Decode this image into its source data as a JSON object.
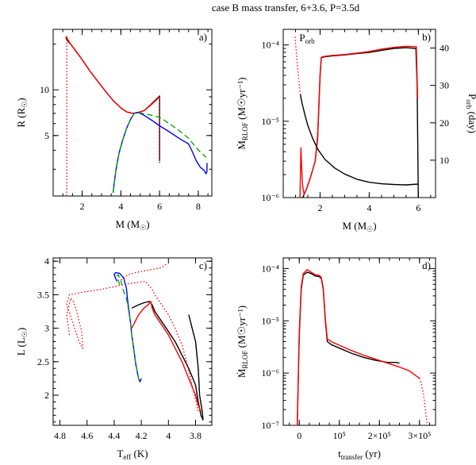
{
  "figure_title": "case B mass transfer,  6+3.6, P=3.5d",
  "chart_data": [
    {
      "panel": "a)",
      "type": "line",
      "xlabel": "M (M",
      "xlabel_sub": "☉",
      "xlabel_end": ")",
      "ylabel": "R (R",
      "ylabel_sub": "☉",
      "ylabel_end": ")",
      "xlim": [
        0.5,
        8.7
      ],
      "ylim_log": [
        2.0,
        25.0
      ],
      "xticks": [
        {
          "v": 2,
          "label": "2"
        },
        {
          "v": 4,
          "label": "4"
        },
        {
          "v": 6,
          "label": "6"
        },
        {
          "v": 8,
          "label": "8"
        }
      ],
      "yticks": [
        {
          "v": 5,
          "label": "5"
        },
        {
          "v": 10,
          "label": "10"
        }
      ],
      "series": [
        {
          "name": "donor (black)",
          "color": "#000000",
          "style": "solid",
          "x": [
            6.0,
            6.0,
            5.8,
            5.5,
            5.2,
            4.9,
            4.6,
            4.3,
            4.0,
            3.6,
            3.2,
            2.8,
            2.4,
            2.0,
            1.7,
            1.4,
            1.25,
            1.15
          ],
          "y": [
            3.4,
            9.1,
            8.6,
            7.9,
            7.3,
            7.1,
            7.0,
            7.15,
            7.6,
            8.5,
            9.8,
            11.4,
            13.3,
            15.8,
            17.8,
            20.0,
            21.0,
            22.0
          ]
        },
        {
          "name": "donor (red)",
          "color": "#ff0000",
          "style": "solid",
          "x": [
            6.0,
            5.8,
            5.5,
            5.2,
            4.9,
            4.6,
            4.3,
            4.0,
            3.6,
            3.2,
            2.8,
            2.4,
            2.0,
            1.7,
            1.4,
            1.25,
            1.15
          ],
          "y": [
            9.0,
            8.5,
            7.85,
            7.3,
            7.1,
            7.0,
            7.15,
            7.6,
            8.5,
            9.8,
            11.4,
            13.3,
            15.8,
            17.8,
            20.0,
            21.5,
            22.5
          ]
        },
        {
          "name": "donor drop (red dotted)",
          "color": "#ff0000",
          "style": "dotted",
          "x": [
            1.2,
            1.2
          ],
          "y": [
            2.0,
            22.5
          ]
        },
        {
          "name": "donor drop 6 (red dotted)",
          "color": "#ff0000",
          "style": "dotted",
          "x": [
            6.0,
            6.0
          ],
          "y": [
            3.3,
            9.1
          ]
        },
        {
          "name": "accretor (blue)",
          "color": "#0000ff",
          "style": "solid",
          "x": [
            3.6,
            3.65,
            3.75,
            3.9,
            4.1,
            4.3,
            4.5,
            4.7,
            4.9,
            5.2,
            5.6,
            6.0,
            6.5,
            7.0,
            7.5,
            7.7,
            7.9,
            8.1,
            8.3,
            8.4,
            8.45,
            8.45
          ],
          "y": [
            2.1,
            2.4,
            3.0,
            3.8,
            4.7,
            5.6,
            6.4,
            7.0,
            7.1,
            6.8,
            6.3,
            5.8,
            5.3,
            4.8,
            4.4,
            3.9,
            3.4,
            3.1,
            2.95,
            2.8,
            2.9,
            3.3
          ]
        },
        {
          "name": "accretor (green dashed)",
          "color": "#00a000",
          "style": "dashed",
          "x": [
            3.6,
            3.65,
            3.75,
            3.9,
            4.1,
            4.3,
            4.5,
            4.7,
            4.9,
            5.2,
            5.6,
            6.0,
            6.5,
            7.0,
            7.5,
            7.8,
            8.1,
            8.4
          ],
          "y": [
            2.1,
            2.4,
            3.0,
            3.8,
            4.7,
            5.6,
            6.4,
            7.0,
            7.1,
            6.95,
            6.8,
            6.6,
            6.0,
            5.4,
            4.8,
            4.3,
            3.9,
            3.6
          ]
        }
      ]
    },
    {
      "panel": "b)",
      "type": "line",
      "xlabel": "M (M",
      "xlabel_sub": "☉",
      "xlabel_end": ")",
      "ylabel": "Ṁ",
      "ylabel_sub": "RLOF",
      "ylabel_end": "  (M☉yr⁻¹)",
      "y2label": "P",
      "y2label_sub": "orb",
      "y2label_end": " (day)",
      "annotation": "P",
      "annotation_sub": "orb",
      "xlim": [
        0.5,
        6.7
      ],
      "ylim_log": [
        1e-06,
        0.00016
      ],
      "y2lim": [
        0,
        45
      ],
      "xticks": [
        {
          "v": 2,
          "label": "2"
        },
        {
          "v": 4,
          "label": "4"
        },
        {
          "v": 6,
          "label": "6"
        }
      ],
      "yticks": [
        {
          "v": 1e-06,
          "label": "10⁻⁶"
        },
        {
          "v": 1e-05,
          "label": "10⁻⁵"
        },
        {
          "v": 0.0001,
          "label": "10⁻⁴"
        }
      ],
      "y2ticks": [
        {
          "v": 10,
          "label": "10"
        },
        {
          "v": 20,
          "label": "20"
        },
        {
          "v": 30,
          "label": "30"
        },
        {
          "v": 40,
          "label": "40"
        }
      ],
      "series": [
        {
          "name": "Mdot (black)",
          "color": "#000000",
          "style": "solid",
          "axis": "y",
          "x": [
            6.0,
            5.95,
            5.9,
            5.5,
            5.0,
            4.5,
            4.0,
            3.5,
            3.0,
            2.5,
            2.2,
            2.05,
            2.0,
            1.95,
            1.9,
            1.8,
            1.6,
            1.45,
            1.35,
            1.3,
            1.25
          ],
          "y": [
            1e-06,
            3e-05,
            9e-05,
            9.2e-05,
            9e-05,
            8.5e-05,
            8e-05,
            7.7e-05,
            7.4e-05,
            7.2e-05,
            7e-05,
            6.8e-05,
            4e-05,
            1.5e-05,
            6e-06,
            3e-06,
            1.8e-06,
            1.3e-06,
            1.1e-06,
            1e-06,
            1e-06
          ]
        },
        {
          "name": "Mdot (red)",
          "color": "#ff0000",
          "style": "solid",
          "axis": "y",
          "x": [
            5.97,
            5.92,
            5.5,
            5.0,
            4.5,
            4.0,
            3.5,
            3.0,
            2.5,
            2.2,
            2.05,
            2.0,
            1.95,
            1.9,
            1.8,
            1.6,
            1.45,
            1.35,
            1.28,
            1.22,
            1.2,
            1.18
          ],
          "y": [
            2e-05,
            9.5e-05,
            9.6e-05,
            9.3e-05,
            8.8e-05,
            8.2e-05,
            7.8e-05,
            7.5e-05,
            7.3e-05,
            7.1e-05,
            6.9e-05,
            4.2e-05,
            1.6e-05,
            6.5e-06,
            3e-06,
            1.8e-06,
            1.3e-06,
            1.1e-06,
            1.5e-06,
            4.5e-06,
            2e-06,
            1e-06
          ]
        },
        {
          "name": "Porb (black)",
          "color": "#000000",
          "style": "solid",
          "axis": "y2",
          "x": [
            6.0,
            5.5,
            5.0,
            4.5,
            4.0,
            3.5,
            3.0,
            2.6,
            2.2,
            1.9,
            1.7,
            1.5,
            1.4,
            1.3,
            1.25,
            1.2
          ],
          "y": [
            3.6,
            3.4,
            3.5,
            3.7,
            4.1,
            4.9,
            6.3,
            7.9,
            10.2,
            13.0,
            15.8,
            19.3,
            21.7,
            24.3,
            25.8,
            27.5
          ]
        },
        {
          "name": "Porb (red dotted)",
          "color": "#ff0000",
          "style": "dotted",
          "axis": "y2",
          "x": [
            1.2,
            1.15,
            1.1,
            1.05,
            1.0,
            0.98
          ],
          "y": [
            27.5,
            30.5,
            33.8,
            37.5,
            41.5,
            43.5
          ]
        }
      ]
    },
    {
      "panel": "c)",
      "type": "line",
      "xlabel": "T",
      "xlabel_sub": "eff",
      "xlabel_end": " (K)",
      "ylabel": "L (L",
      "ylabel_sub": "☉",
      "ylabel_end": ")",
      "xlim_reversed": [
        4.85,
        3.68
      ],
      "ylim": [
        1.55,
        4.05
      ],
      "xticks": [
        {
          "v": 4.8,
          "label": "4.8"
        },
        {
          "v": 4.6,
          "label": "4.6"
        },
        {
          "v": 4.4,
          "label": "4.4"
        },
        {
          "v": 4.2,
          "label": "4.2"
        },
        {
          "v": 4.0,
          "label": "4"
        },
        {
          "v": 3.8,
          "label": "3.8"
        }
      ],
      "yticks": [
        {
          "v": 2,
          "label": "2"
        },
        {
          "v": 2.5,
          "label": "2.5"
        },
        {
          "v": 3,
          "label": "3"
        },
        {
          "v": 3.5,
          "label": "3.5"
        },
        {
          "v": 4,
          "label": "4"
        }
      ],
      "series": [
        {
          "name": "donor track (black)",
          "color": "#000000",
          "style": "solid",
          "x": [
            4.27,
            4.22,
            4.18,
            4.14,
            4.12,
            4.1,
            4.05,
            4.0,
            3.95,
            3.9,
            3.85,
            3.8,
            3.78,
            3.76,
            3.745,
            3.75,
            3.77,
            3.78,
            3.8,
            3.85
          ],
          "y": [
            3.3,
            3.35,
            3.38,
            3.4,
            3.35,
            3.25,
            3.1,
            2.95,
            2.8,
            2.6,
            2.4,
            2.15,
            1.9,
            1.7,
            1.63,
            1.75,
            2.0,
            2.4,
            2.8,
            3.2
          ]
        },
        {
          "name": "donor track (red)",
          "color": "#ff0000",
          "style": "solid",
          "x": [
            4.27,
            4.22,
            4.18,
            4.15,
            4.13,
            4.12,
            4.1,
            4.05,
            4.0,
            3.95,
            3.9,
            3.85,
            3.8,
            3.78,
            3.76
          ],
          "y": [
            3.0,
            3.2,
            3.3,
            3.35,
            3.4,
            3.3,
            3.2,
            3.05,
            2.9,
            2.7,
            2.5,
            2.25,
            2.0,
            1.85,
            1.75
          ]
        },
        {
          "name": "red dotted (loops)",
          "color": "#ff0000",
          "style": "dotted",
          "x": [
            4.73,
            4.75,
            4.72,
            4.7,
            4.67,
            4.64,
            4.63,
            4.66,
            4.7,
            4.75,
            4.73,
            4.6,
            4.5,
            4.4,
            4.32,
            4.24,
            4.17,
            4.15,
            4.12,
            4.1,
            4.05,
            4.0,
            3.95,
            3.9,
            3.86,
            3.82,
            3.79,
            3.78
          ],
          "y": [
            2.9,
            3.2,
            3.45,
            3.4,
            3.2,
            2.95,
            2.7,
            2.8,
            3.05,
            3.35,
            3.5,
            3.55,
            3.58,
            3.62,
            3.66,
            3.68,
            3.7,
            3.65,
            3.58,
            3.5,
            3.35,
            3.2,
            3.0,
            2.75,
            2.45,
            2.1,
            1.85,
            1.75
          ]
        },
        {
          "name": "red dotted (upper)",
          "color": "#ff0000",
          "style": "dotted",
          "x": [
            4.35,
            4.3,
            4.22,
            4.14,
            4.06,
            4.03,
            4.02,
            4.01
          ],
          "y": [
            3.72,
            3.8,
            3.84,
            3.87,
            3.9,
            3.93,
            3.95,
            3.92
          ]
        },
        {
          "name": "accretor (blue)",
          "color": "#0000ff",
          "style": "solid",
          "x": [
            4.38,
            4.4,
            4.39,
            4.36,
            4.33,
            4.31,
            4.3,
            4.28,
            4.27,
            4.26,
            4.25,
            4.24,
            4.23,
            4.22,
            4.21,
            4.2
          ],
          "y": [
            3.7,
            3.8,
            3.83,
            3.82,
            3.75,
            3.6,
            3.4,
            3.1,
            2.9,
            2.75,
            2.6,
            2.45,
            2.35,
            2.25,
            2.2,
            2.25
          ]
        },
        {
          "name": "accretor (green dashed)",
          "color": "#00a000",
          "style": "dashed",
          "x": [
            4.36,
            4.38,
            4.37,
            4.35,
            4.33,
            4.31,
            4.3,
            4.28,
            4.27,
            4.26,
            4.25,
            4.24,
            4.23,
            4.22,
            4.21
          ],
          "y": [
            3.65,
            3.78,
            3.8,
            3.7,
            3.55,
            3.45,
            3.35,
            3.1,
            2.9,
            2.75,
            2.6,
            2.45,
            2.35,
            2.25,
            2.18
          ]
        }
      ]
    },
    {
      "panel": "d)",
      "type": "line",
      "xlabel": "t",
      "xlabel_sub": "transfer",
      "xlabel_end": " (yr)",
      "ylabel": "Ṁ",
      "ylabel_sub": "RLOF",
      "ylabel_end": "  (M☉yr⁻¹)",
      "xlim": [
        -40000,
        340000
      ],
      "ylim_log": [
        1e-07,
        0.00016
      ],
      "xticks": [
        {
          "v": 0,
          "label": "0"
        },
        {
          "v": 100000,
          "label": "10⁵"
        },
        {
          "v": 200000,
          "label": "2×10⁵"
        },
        {
          "v": 300000,
          "label": "3×10⁵"
        }
      ],
      "yticks": [
        {
          "v": 1e-07,
          "label": "10⁻⁷"
        },
        {
          "v": 1e-06,
          "label": "10⁻⁶"
        },
        {
          "v": 1e-05,
          "label": "10⁻⁵"
        },
        {
          "v": 0.0001,
          "label": "10⁻⁴"
        }
      ],
      "series": [
        {
          "name": "Mdot (black)",
          "color": "#000000",
          "style": "solid",
          "x": [
            -5000,
            0,
            5000,
            10000,
            20000,
            30000,
            40000,
            50000,
            55000,
            60000,
            65000,
            70000,
            80000,
            100000,
            130000,
            160000,
            190000,
            220000,
            240000,
            250000
          ],
          "y": [
            1e-07,
            5e-06,
            4e-05,
            7.5e-05,
            8.5e-05,
            8e-05,
            7.2e-05,
            7e-05,
            6.5e-05,
            4e-05,
            1e-05,
            4e-06,
            3.5e-06,
            3e-06,
            2.4e-06,
            2e-06,
            1.75e-06,
            1.6e-06,
            1.6e-06,
            1.55e-06
          ]
        },
        {
          "name": "Mdot (red)",
          "color": "#ff0000",
          "style": "solid",
          "x": [
            -5000,
            0,
            5000,
            10000,
            20000,
            30000,
            40000,
            50000,
            55000,
            60000,
            65000,
            70000,
            80000,
            100000,
            130000,
            160000,
            190000,
            220000,
            250000,
            275000,
            290000,
            300000
          ],
          "y": [
            1e-07,
            6e-06,
            4.5e-05,
            8e-05,
            9.5e-05,
            8.5e-05,
            7.6e-05,
            7.4e-05,
            6.8e-05,
            4.2e-05,
            1.1e-05,
            4.5e-06,
            4e-06,
            3.4e-06,
            2.7e-06,
            2.2e-06,
            1.85e-06,
            1.55e-06,
            1.3e-06,
            1.1e-06,
            9e-07,
            8e-07
          ]
        },
        {
          "name": "Mdot (red dotted)",
          "color": "#ff0000",
          "style": "dotted",
          "x": [
            300000,
            305000,
            310000,
            313000,
            316000,
            318000,
            320000
          ],
          "y": [
            8e-07,
            6e-07,
            4e-07,
            2.5e-07,
            1.6e-07,
            1.2e-07,
            1e-07
          ]
        }
      ]
    }
  ]
}
